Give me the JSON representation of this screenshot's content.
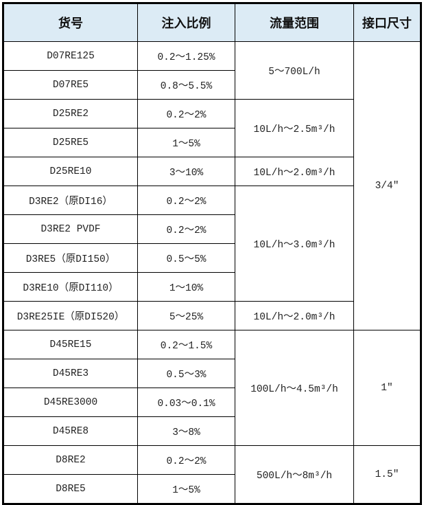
{
  "headers": [
    "货号",
    "注入比例",
    "流量范围",
    "接口尺寸"
  ],
  "colors": {
    "header_bg": "#dcebf5",
    "border": "#000000"
  },
  "rows": [
    {
      "model": "D07RE125",
      "ratio": "0.2～1.25%"
    },
    {
      "model": "D07RE5",
      "ratio": "0.8～5.5%"
    },
    {
      "model": "D25RE2",
      "ratio": "0.2～2%"
    },
    {
      "model": "D25RE5",
      "ratio": "1～5%"
    },
    {
      "model": "D25RE10",
      "ratio": "3～10%"
    },
    {
      "model": "D3RE2（原DI16）",
      "ratio": "0.2～2%"
    },
    {
      "model": "D3RE2 PVDF",
      "ratio": "0.2～2%"
    },
    {
      "model": "D3RE5（原DI150）",
      "ratio": "0.5～5%"
    },
    {
      "model": "D3RE10（原DI110）",
      "ratio": "1～10%"
    },
    {
      "model": "D3RE25IE（原DI520）",
      "ratio": "5～25%"
    },
    {
      "model": "D45RE15",
      "ratio": "0.2～1.5%"
    },
    {
      "model": "D45RE3",
      "ratio": "0.5～3%"
    },
    {
      "model": "D45RE3000",
      "ratio": "0.03～0.1%"
    },
    {
      "model": "D45RE8",
      "ratio": "3～8%"
    },
    {
      "model": "D8RE2",
      "ratio": "0.2～2%"
    },
    {
      "model": "D8RE5",
      "ratio": "1～5%"
    }
  ],
  "flow": [
    "5～700L/h",
    "10L/h～2.5m³/h",
    "10L/h～2.0m³/h",
    "10L/h～3.0m³/h",
    "10L/h～2.0m³/h",
    "100L/h～4.5m³/h",
    "500L/h～8m³/h"
  ],
  "size": [
    "3/4″",
    "1″",
    "1.5″"
  ]
}
